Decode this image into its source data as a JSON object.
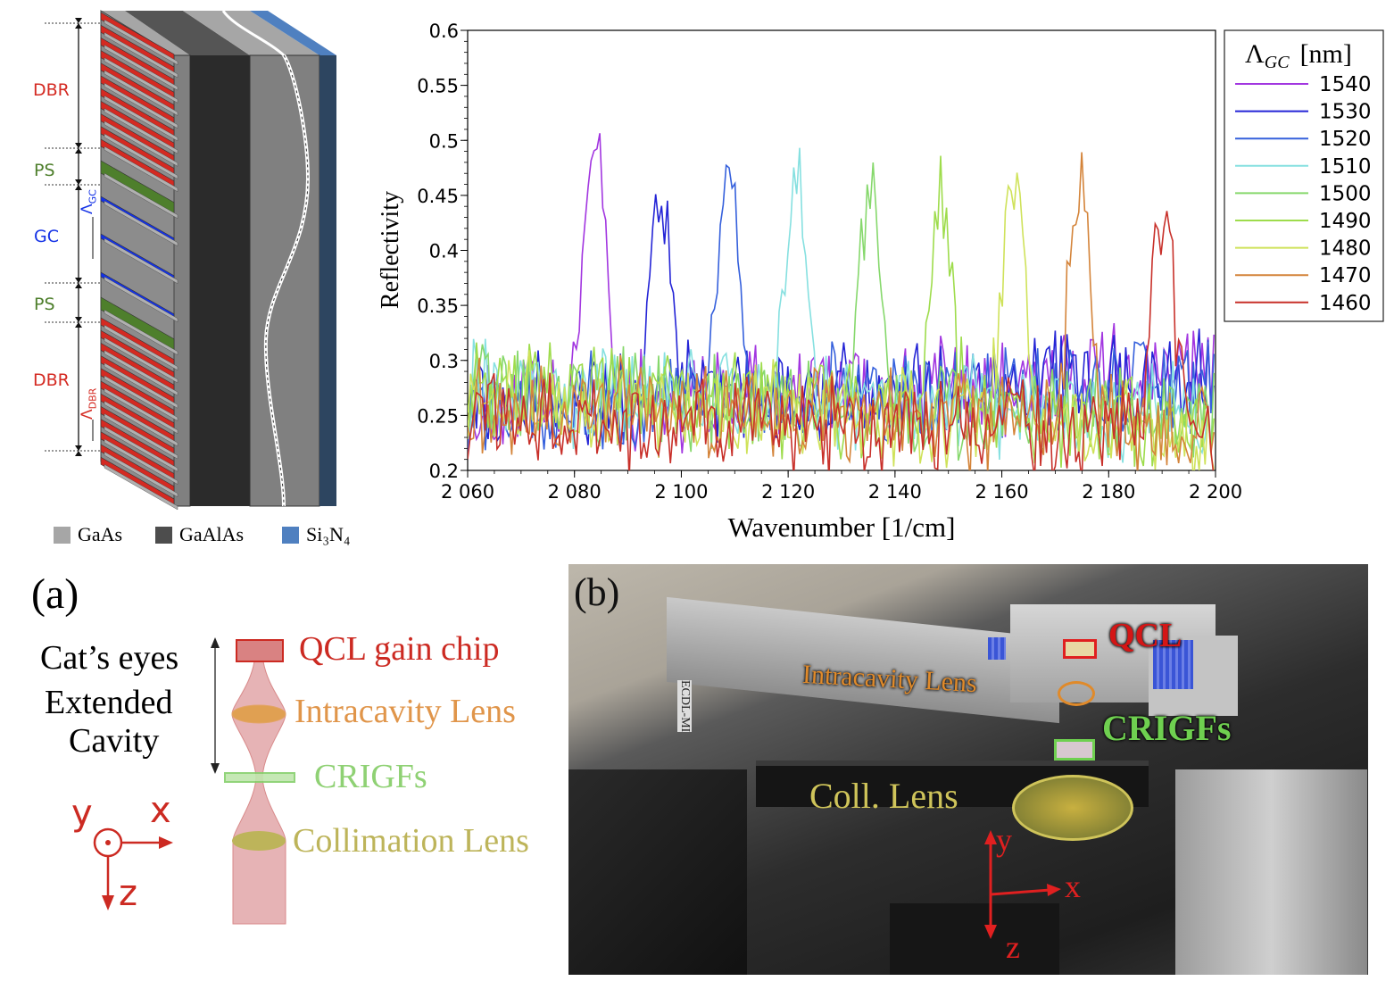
{
  "structure_diagram": {
    "labels": {
      "dbr_top": "DBR",
      "ps_top": "PS",
      "gc": "GC",
      "ps_bottom": "PS",
      "dbr_bottom": "DBR",
      "lambda_gc": "Λ",
      "lambda_gc_sub": "GC",
      "lambda_dbr": "Λ",
      "lambda_dbr_sub": "DBR"
    },
    "colors": {
      "dbr": "#d42a22",
      "ps": "#4e7f2c",
      "gc": "#1432e6"
    },
    "legend": [
      {
        "label": "GaAs",
        "color": "#a6a6a6"
      },
      {
        "label": "GaAlAs",
        "color": "#4d4d4d"
      },
      {
        "label": "Si₃N₄",
        "color": "#4f80c0"
      }
    ]
  },
  "chart_data": {
    "type": "line",
    "title": "",
    "xlabel": "Wavenumber [1/cm]",
    "ylabel": "Reflectivity",
    "xlim": [
      2060,
      2200
    ],
    "ylim": [
      0.2,
      0.6
    ],
    "x_ticks": [
      2060,
      2080,
      2100,
      2120,
      2140,
      2160,
      2180,
      2200
    ],
    "x_tick_labels": [
      "2 060",
      "2 080",
      "2 100",
      "2 120",
      "2 140",
      "2 160",
      "2 180",
      "2 200"
    ],
    "y_ticks": [
      0.2,
      0.25,
      0.3,
      0.35,
      0.4,
      0.45,
      0.5,
      0.55,
      0.6
    ],
    "y_tick_labels": [
      "0.2",
      "0.25",
      "0.3",
      "0.35",
      "0.4",
      "0.45",
      "0.5",
      "0.55",
      "0.6"
    ],
    "grid": false,
    "legend_title": "Λ",
    "legend_title_sub": "GC",
    "legend_title_unit": "[nm]",
    "legend_position": "right",
    "series": [
      {
        "name": "1540",
        "color": "#a236e0",
        "peak_x": 2084.4,
        "peak_y": 0.505,
        "baseline_start": 0.255,
        "baseline_end": 0.29
      },
      {
        "name": "1530",
        "color": "#2424d6",
        "peak_x": 2096.5,
        "peak_y": 0.45,
        "baseline_start": 0.26,
        "baseline_end": 0.285
      },
      {
        "name": "1520",
        "color": "#3560dc",
        "peak_x": 2109.3,
        "peak_y": 0.46,
        "baseline_start": 0.255,
        "baseline_end": 0.28
      },
      {
        "name": "1510",
        "color": "#86e0e0",
        "peak_x": 2121.8,
        "peak_y": 0.46,
        "baseline_start": 0.27,
        "baseline_end": 0.25
      },
      {
        "name": "1500",
        "color": "#86d86c",
        "peak_x": 2135.7,
        "peak_y": 0.465,
        "baseline_start": 0.27,
        "baseline_end": 0.24
      },
      {
        "name": "1490",
        "color": "#9edc4c",
        "peak_x": 2149.1,
        "peak_y": 0.45,
        "baseline_start": 0.275,
        "baseline_end": 0.24
      },
      {
        "name": "1480",
        "color": "#cfe25a",
        "peak_x": 2162.7,
        "peak_y": 0.457,
        "baseline_start": 0.265,
        "baseline_end": 0.235
      },
      {
        "name": "1470",
        "color": "#d4843a",
        "peak_x": 2175.1,
        "peak_y": 0.445,
        "baseline_start": 0.26,
        "baseline_end": 0.235
      },
      {
        "name": "1460",
        "color": "#c8302a",
        "peak_x": 2190.6,
        "peak_y": 0.435,
        "baseline_start": 0.245,
        "baseline_end": 0.235
      }
    ]
  },
  "panel_a": {
    "tag": "(a)",
    "bracket_label": [
      "Cat’s eyes",
      "Extended",
      "Cavity"
    ],
    "components": {
      "qcl": {
        "label": "QCL gain chip",
        "color": "#cc2a22"
      },
      "intracavity_lens": {
        "label": "Intracavity Lens",
        "color": "#e0954a"
      },
      "crigfs": {
        "label": "CRIGFs",
        "color": "#8fd174"
      },
      "collimation_lens": {
        "label": "Collimation Lens",
        "color": "#bdb45a"
      }
    },
    "axes": {
      "x": "x",
      "y": "y",
      "z": "z",
      "color": "#cc2a22"
    }
  },
  "panel_b": {
    "tag": "(b)",
    "labels": {
      "qcl": "QCL",
      "intracavity_lens": "Intracavity Lens",
      "crigfs": "CRIGFs",
      "coll_lens": "Coll. Lens",
      "ecdl": "ECDL-MI"
    },
    "axes": {
      "x": "x",
      "y": "y",
      "z": "z"
    }
  }
}
